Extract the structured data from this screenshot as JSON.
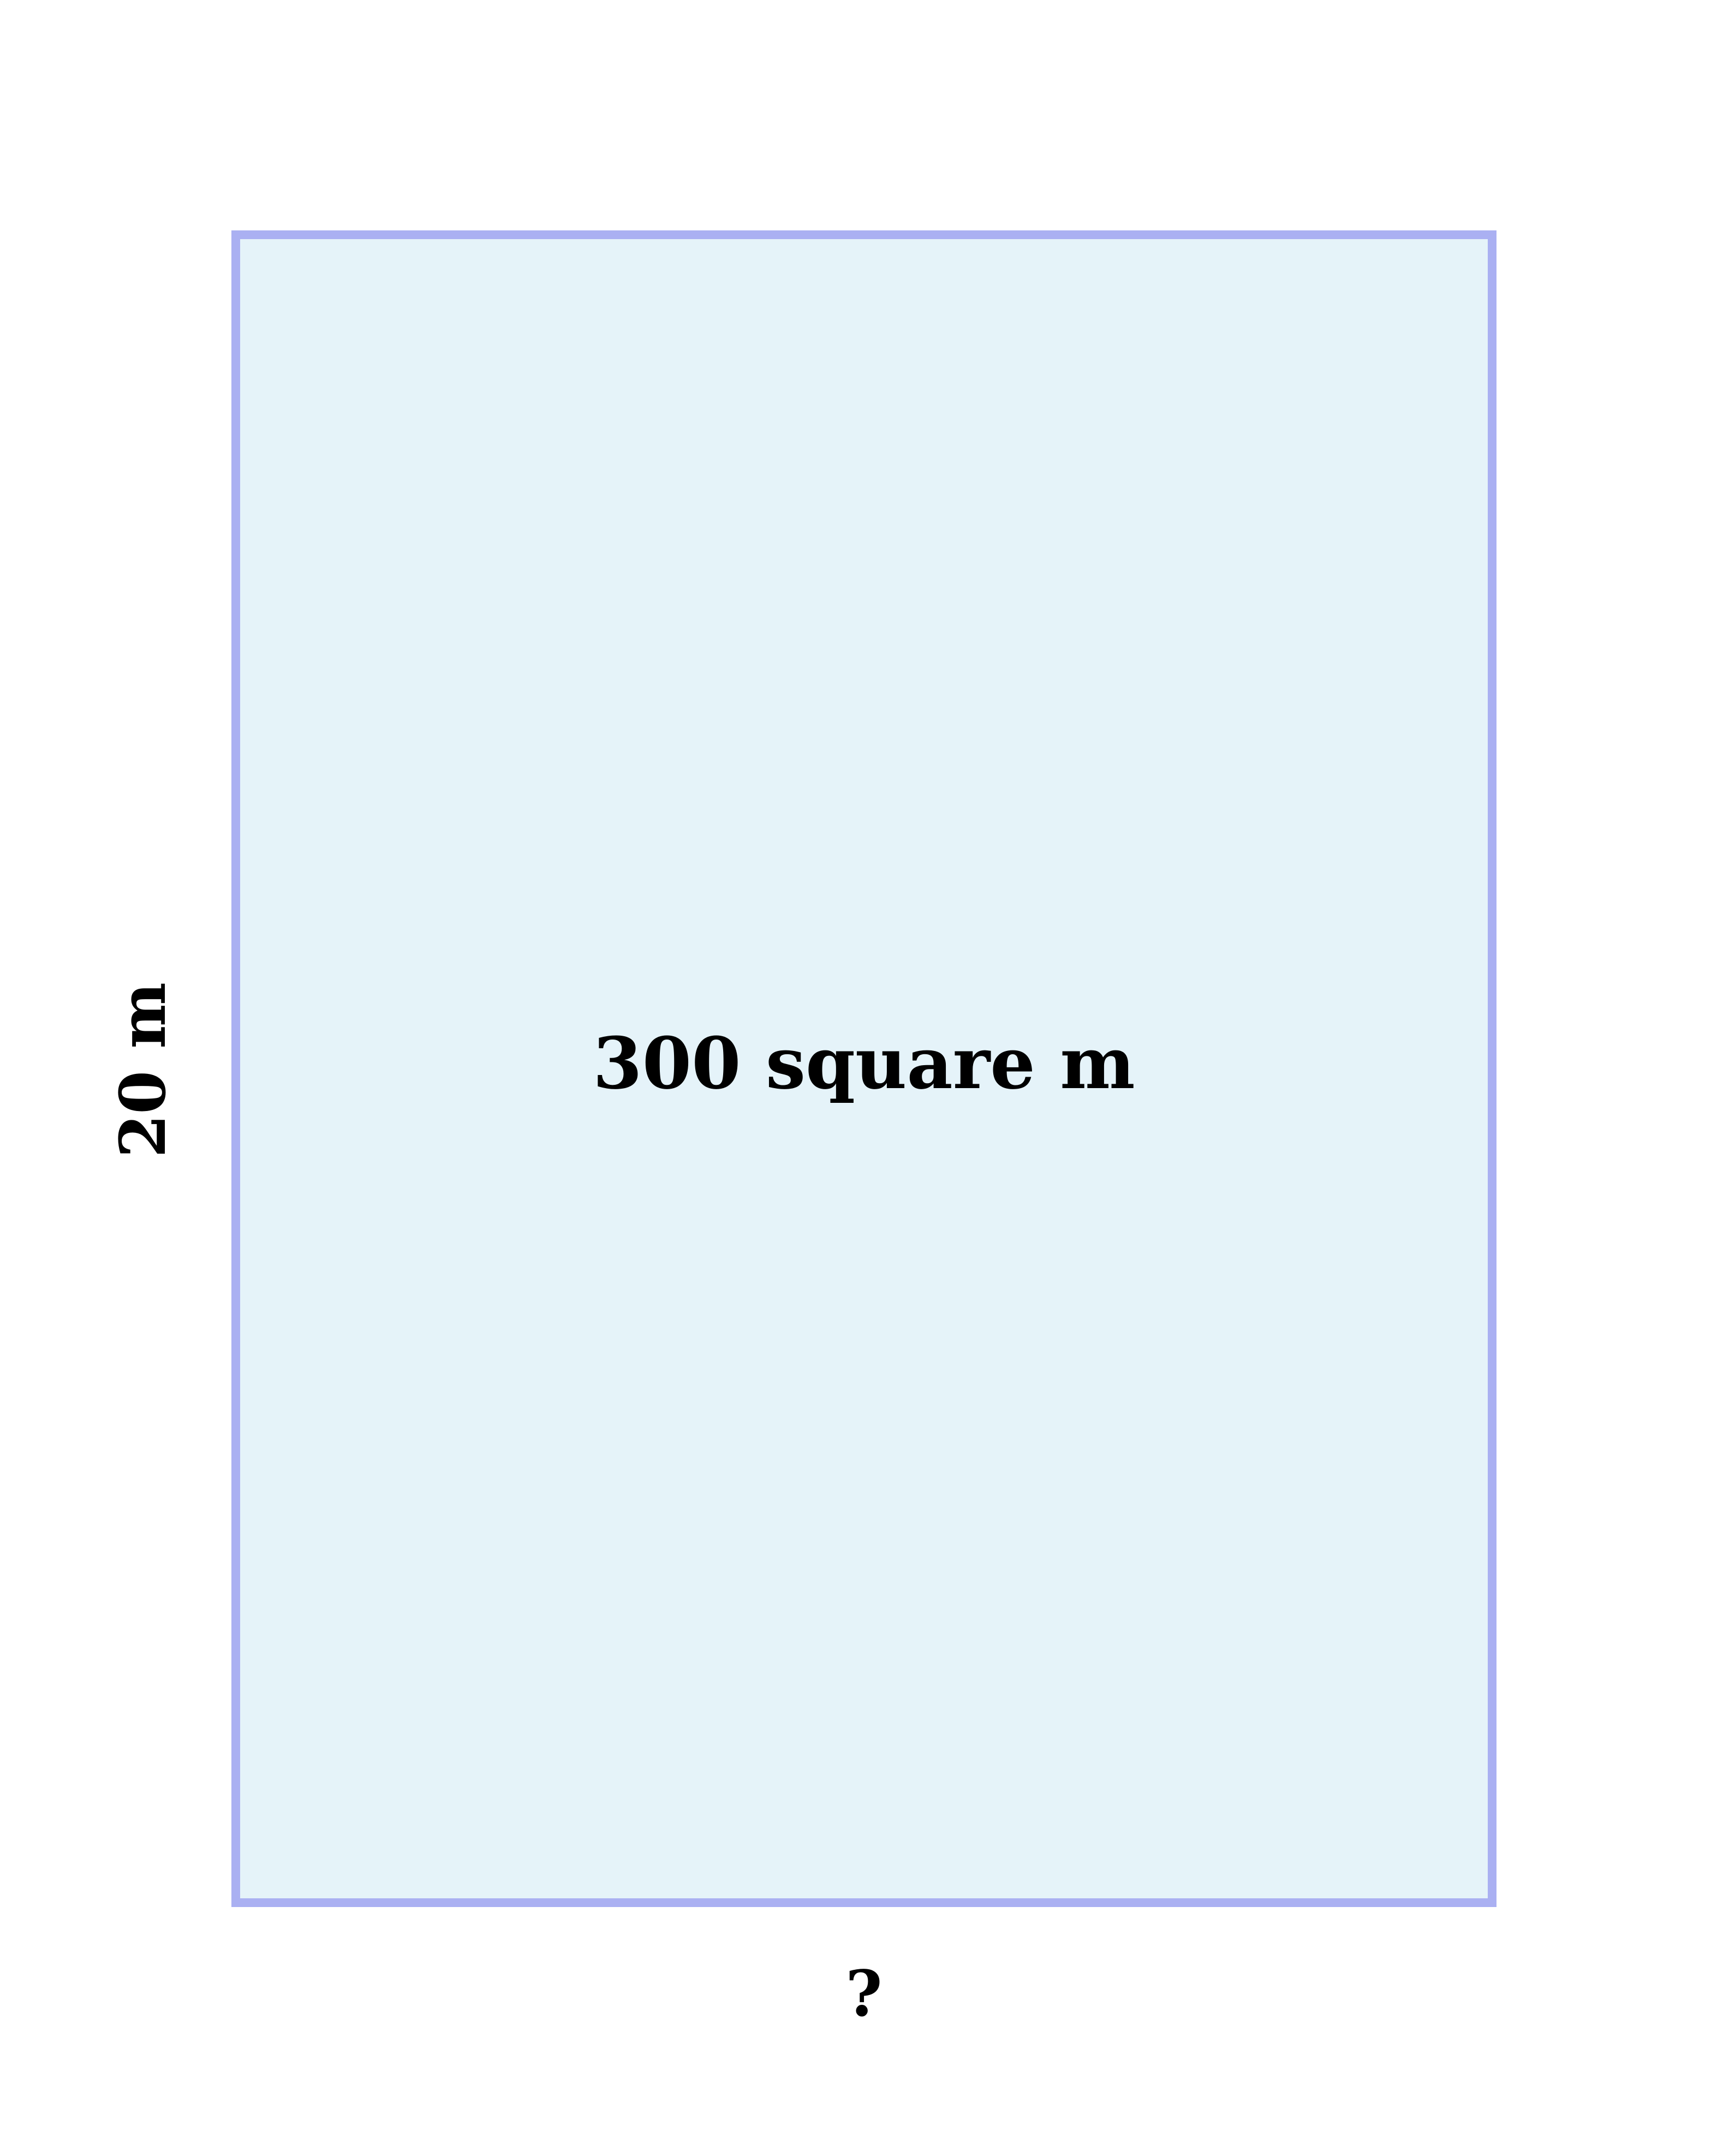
{
  "shape": {
    "type": "rectangle",
    "area_label": "300 square m",
    "side_label": "20 m",
    "bottom_label": "?",
    "fill_color": "#e5f3f9",
    "stroke_color": "#aab0f2"
  }
}
